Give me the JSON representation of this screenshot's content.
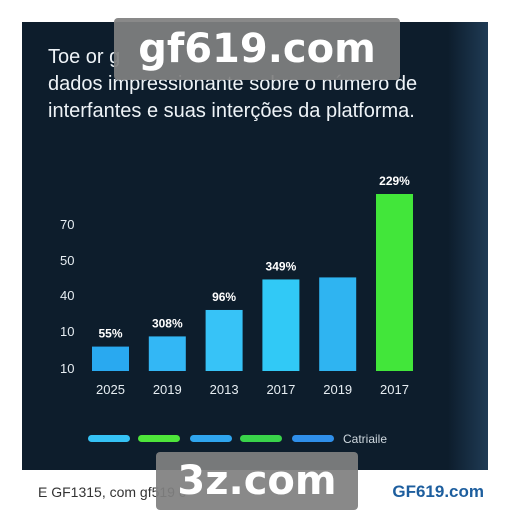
{
  "intro": {
    "line1": "Toe or g",
    "line2": "dados impressionante sobre o número de",
    "line3": "interfantes e suas interções da platforma."
  },
  "watermarks": {
    "top": "gf619.com",
    "bottom": "3z.com"
  },
  "footer": {
    "left": "E GF1315, com gf519 c",
    "right": "GF619.com"
  },
  "chart_data": {
    "type": "bar",
    "categories": [
      "2025",
      "2019",
      "2013",
      "2017",
      "2019",
      "2017"
    ],
    "values": [
      12,
      17,
      30,
      45,
      46,
      87
    ],
    "data_labels": [
      "55%",
      "308%",
      "96%",
      "349%",
      "",
      "229%"
    ],
    "colors": [
      "#29a9f0",
      "#33b7f5",
      "#37c3f7",
      "#31c9f6",
      "#2fb4f1",
      "#42e63a"
    ],
    "y_tick_labels": [
      "10",
      "10",
      "40",
      "50",
      "70"
    ],
    "title": "",
    "xlabel": "",
    "ylabel": "",
    "grid": false,
    "legend": {
      "placement": "bottom",
      "swatch_colors": [
        "#35c2f5",
        "#4ee53a",
        "#2fa5ee",
        "#39d34a",
        "#2f8fea"
      ],
      "label": "Catriaile"
    }
  }
}
